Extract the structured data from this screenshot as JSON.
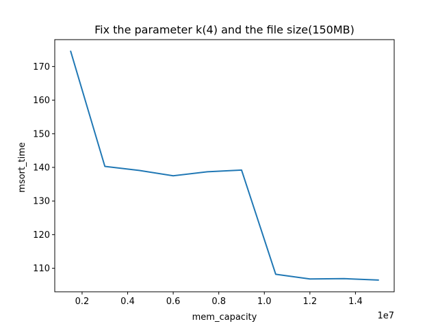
{
  "chart_data": {
    "type": "line",
    "title": "Fix the parameter k(4) and the file size(150MB)",
    "xlabel": "mem_capacity",
    "ylabel": "msort_time",
    "x_offset_text": "1e7",
    "x_scale": 10000000,
    "xlim": [
      800000,
      15700000
    ],
    "ylim": [
      103.0,
      178.0
    ],
    "grid": false,
    "x_ticks": [
      {
        "value": 2000000,
        "label": "0.2"
      },
      {
        "value": 4000000,
        "label": "0.4"
      },
      {
        "value": 6000000,
        "label": "0.6"
      },
      {
        "value": 8000000,
        "label": "0.8"
      },
      {
        "value": 10000000,
        "label": "1.0"
      },
      {
        "value": 12000000,
        "label": "1.2"
      },
      {
        "value": 14000000,
        "label": "1.4"
      }
    ],
    "y_ticks": [
      {
        "value": 110,
        "label": "110"
      },
      {
        "value": 120,
        "label": "120"
      },
      {
        "value": 130,
        "label": "130"
      },
      {
        "value": 140,
        "label": "140"
      },
      {
        "value": 150,
        "label": "150"
      },
      {
        "value": 160,
        "label": "160"
      },
      {
        "value": 170,
        "label": "170"
      }
    ],
    "series": [
      {
        "color": "#1f77b4",
        "x": [
          1500000,
          3000000,
          4500000,
          6000000,
          7500000,
          9000000,
          10500000,
          12000000,
          13500000,
          15000000
        ],
        "y": [
          174.5,
          140.3,
          139.1,
          137.5,
          138.7,
          139.2,
          108.2,
          106.8,
          106.9,
          106.5
        ]
      }
    ]
  }
}
